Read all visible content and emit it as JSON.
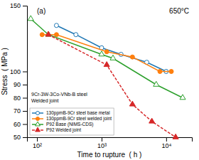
{
  "chart_data": {
    "type": "line",
    "annotations": [
      "650°C",
      "(a)",
      "9Cr-3W-3Co-VNb-B steel",
      "Welded joint"
    ],
    "xlabel": "Time to rupture  ( h )",
    "ylabel": "Stress  ( MPa )",
    "log": "x",
    "xlim": [
      70,
      25000
    ],
    "ylim": [
      50,
      150
    ],
    "xticks": [
      {
        "value": 100,
        "label": "10²"
      },
      {
        "value": 1000,
        "label": "10³"
      },
      {
        "value": 10000,
        "label": "10⁴"
      }
    ],
    "yticks": [
      50,
      60,
      70,
      80,
      90,
      100,
      150
    ],
    "grid": false,
    "legend": "lower left",
    "series": [
      {
        "name": "130ppmB-9Cr steel base metal",
        "marker": "circle-open",
        "line_style": "solid",
        "x": [
          200,
          400,
          1000,
          2000,
          5000,
          10000
        ],
        "values": [
          135,
          128,
          118,
          113,
          107,
          100
        ]
      },
      {
        "name": "130ppmB-9Cr steel welded joint",
        "marker": "circle",
        "line_style": "solid",
        "x": [
          120,
          200,
          1200,
          3000,
          8000,
          12000
        ],
        "values": [
          128,
          128,
          115,
          111,
          100,
          100
        ]
      },
      {
        "name": "P92 Base (NIMS-CDS)",
        "marker": "triangle-open",
        "line_style": "solid",
        "x": [
          80,
          150,
          1000,
          1500,
          7000,
          18000
        ],
        "values": [
          140,
          128,
          113,
          110,
          90,
          80
        ]
      },
      {
        "name": "P92 Welded joint",
        "marker": "triangle",
        "line_style": "dashed",
        "x": [
          150,
          1200,
          3000,
          6000,
          14000
        ],
        "values": [
          128,
          105,
          75,
          62,
          50
        ]
      }
    ]
  }
}
